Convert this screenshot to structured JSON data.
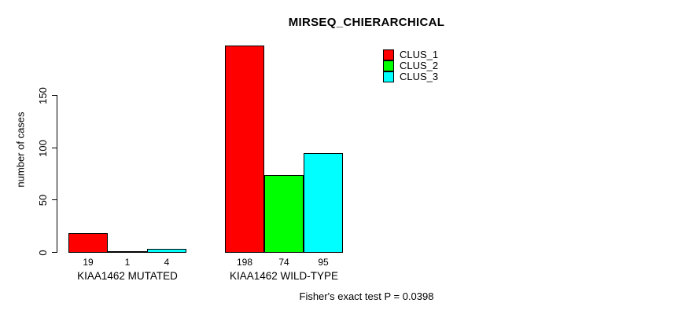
{
  "chart_data": {
    "type": "bar",
    "title": "MIRSEQ_CHIERARCHICAL",
    "ylabel": "number of cases",
    "xlabel": "",
    "ylim": [
      0,
      198
    ],
    "yticks": [
      0,
      50,
      100,
      150
    ],
    "grid": false,
    "legend_position": "top-right",
    "categories": [
      "KIAA1462 MUTATED",
      "KIAA1462 WILD-TYPE"
    ],
    "series": [
      {
        "name": "CLUS_1",
        "color": "#ff0000",
        "values": [
          19,
          198
        ]
      },
      {
        "name": "CLUS_2",
        "color": "#00ff00",
        "values": [
          1,
          74
        ]
      },
      {
        "name": "CLUS_3",
        "color": "#00ffff",
        "values": [
          4,
          95
        ]
      }
    ],
    "footer": "Fisher's exact test P = 0.0398"
  }
}
